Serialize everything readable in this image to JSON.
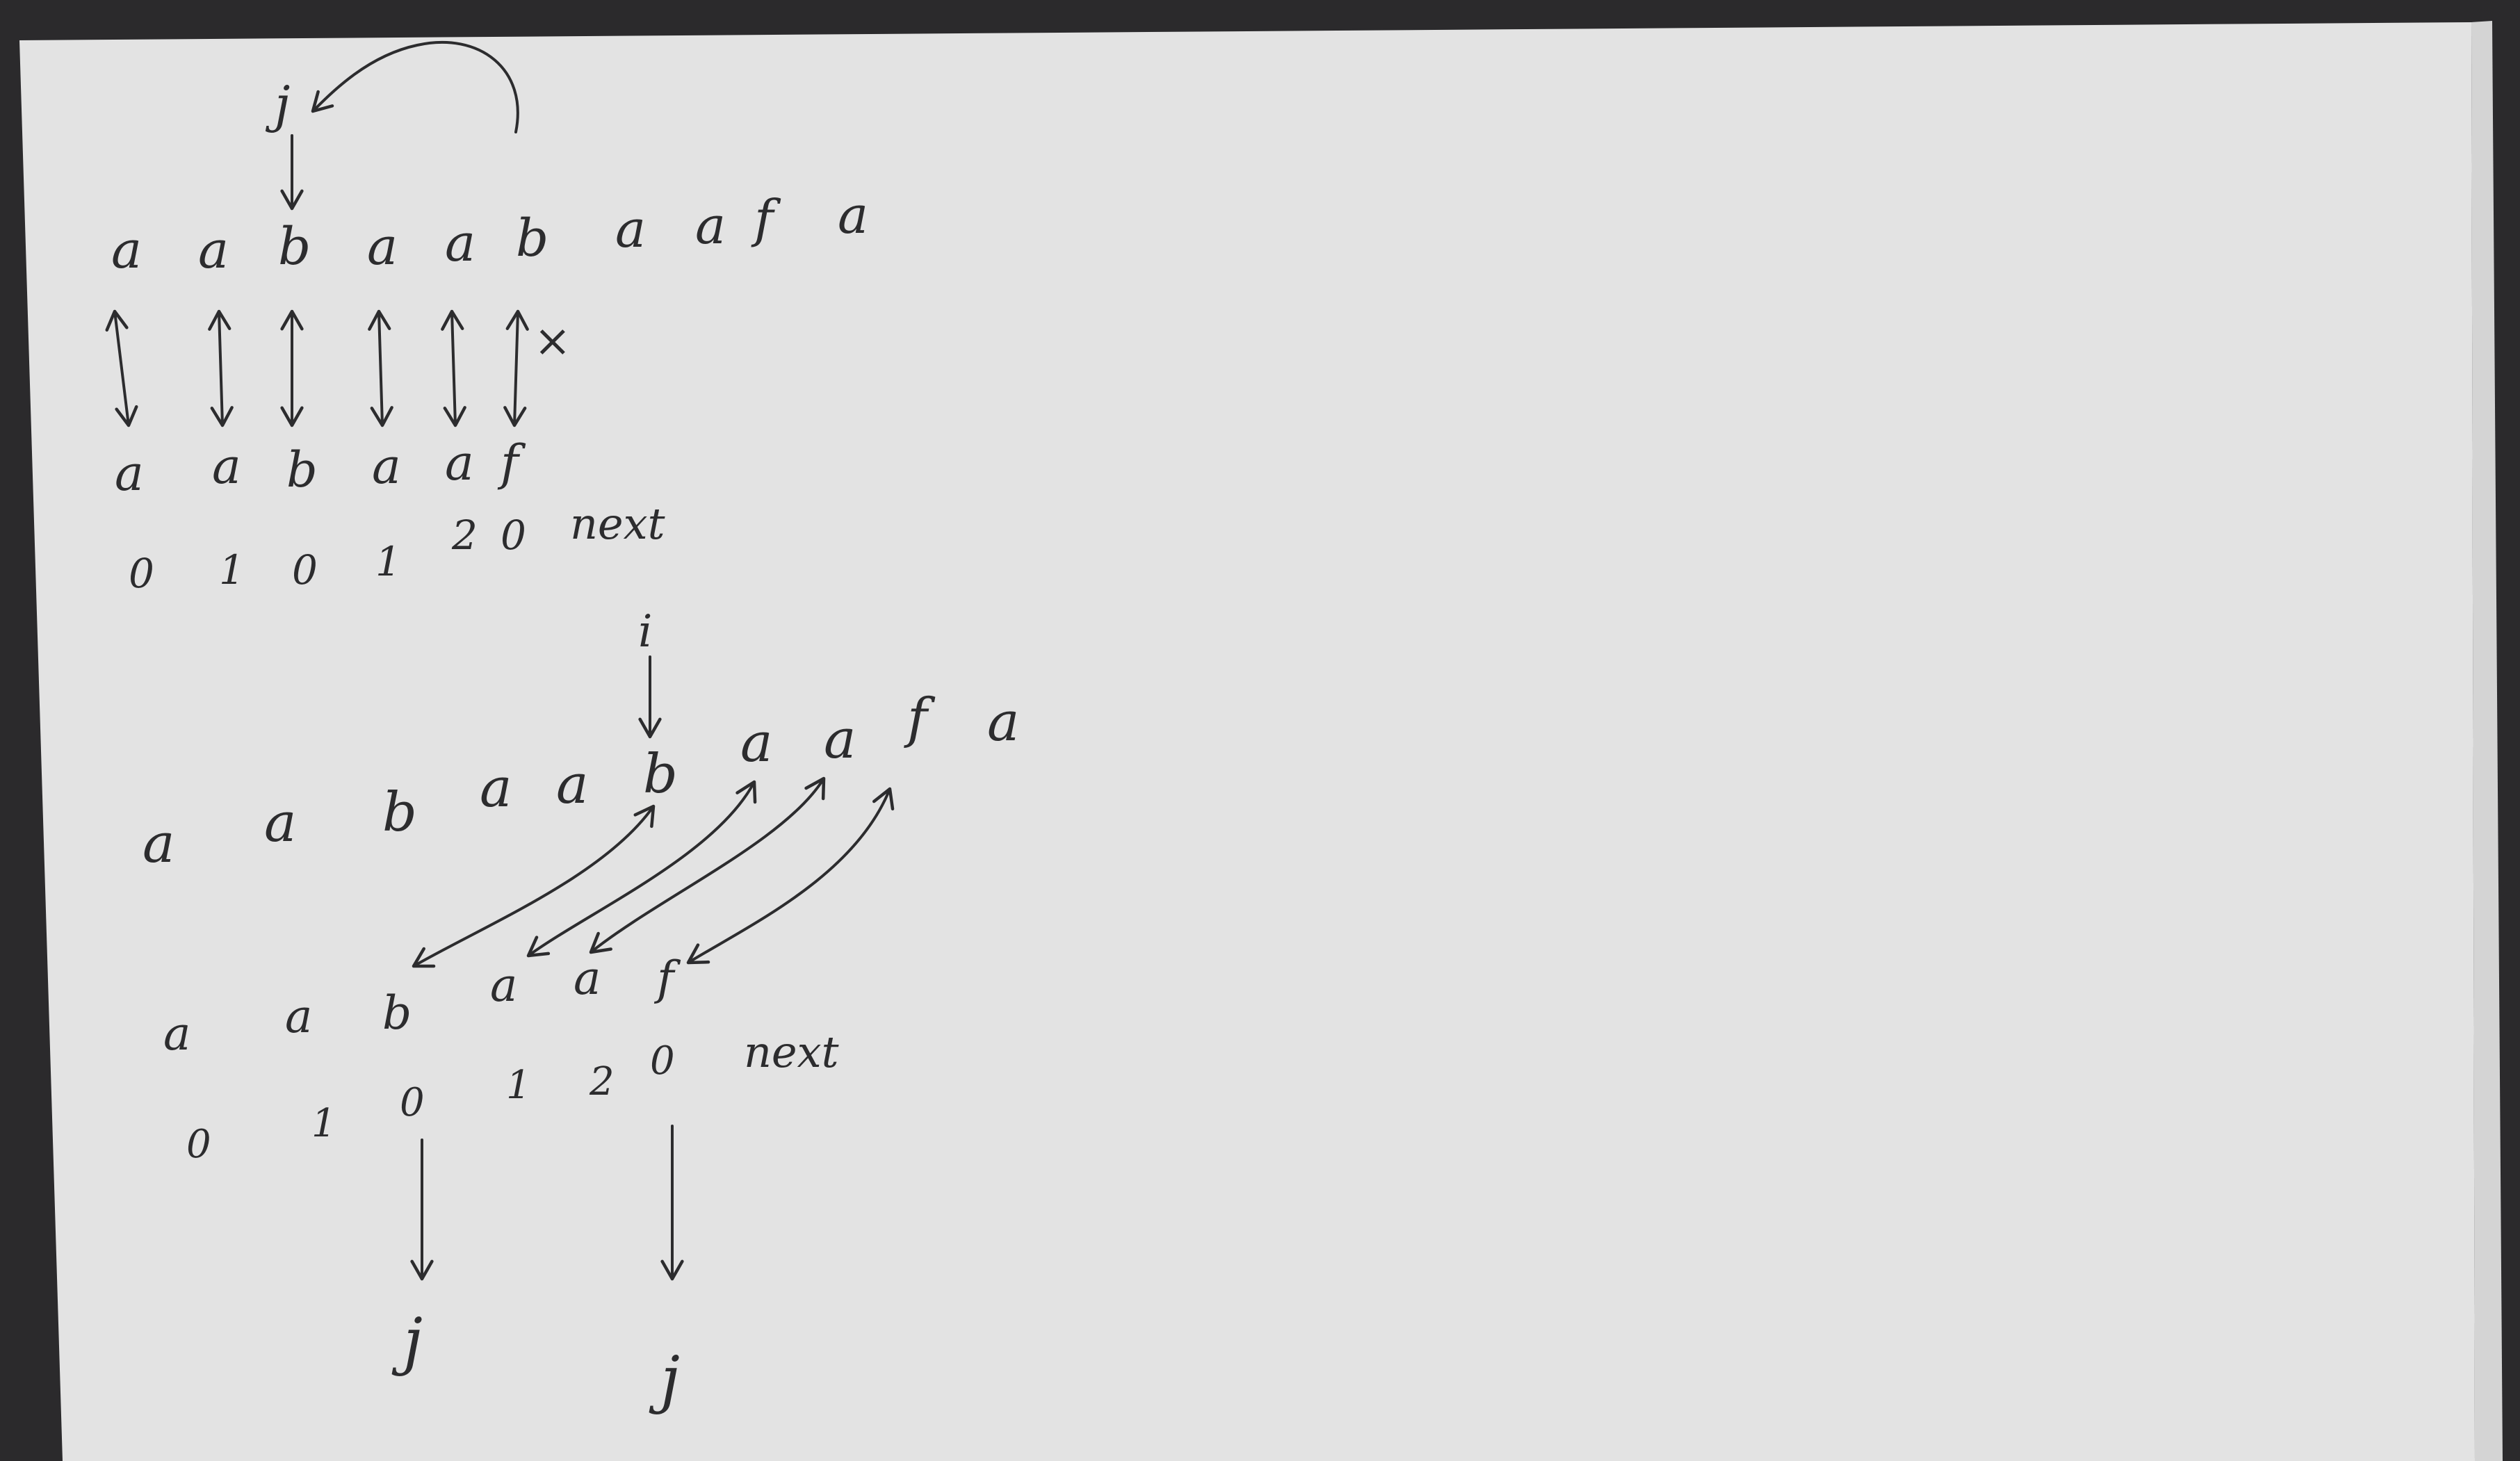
{
  "colors": {
    "background": "#2b2a2c",
    "paper": "#e3e3e3",
    "ink": "#2c2c2e"
  },
  "diagram_top": {
    "pointer_label": "j",
    "text": [
      "a",
      "a",
      "b",
      "a",
      "a",
      "b",
      "a",
      "a",
      "f",
      "a"
    ],
    "pattern": [
      "a",
      "a",
      "b",
      "a",
      "a",
      "f"
    ],
    "next_values": [
      "0",
      "1",
      "0",
      "1",
      "2",
      "0"
    ],
    "next_label": "next",
    "mismatch_mark": "×"
  },
  "diagram_bottom": {
    "pointer_label": "i",
    "text": [
      "a",
      "a",
      "b",
      "a",
      "a",
      "b",
      "a",
      "a",
      "f",
      "a"
    ],
    "pattern": [
      "a",
      "a",
      "b",
      "a",
      "a",
      "f"
    ],
    "next_values": [
      "0",
      "1",
      "0",
      "1",
      "2",
      "0"
    ],
    "next_label": "next",
    "j_labels": [
      "j",
      "j"
    ]
  }
}
